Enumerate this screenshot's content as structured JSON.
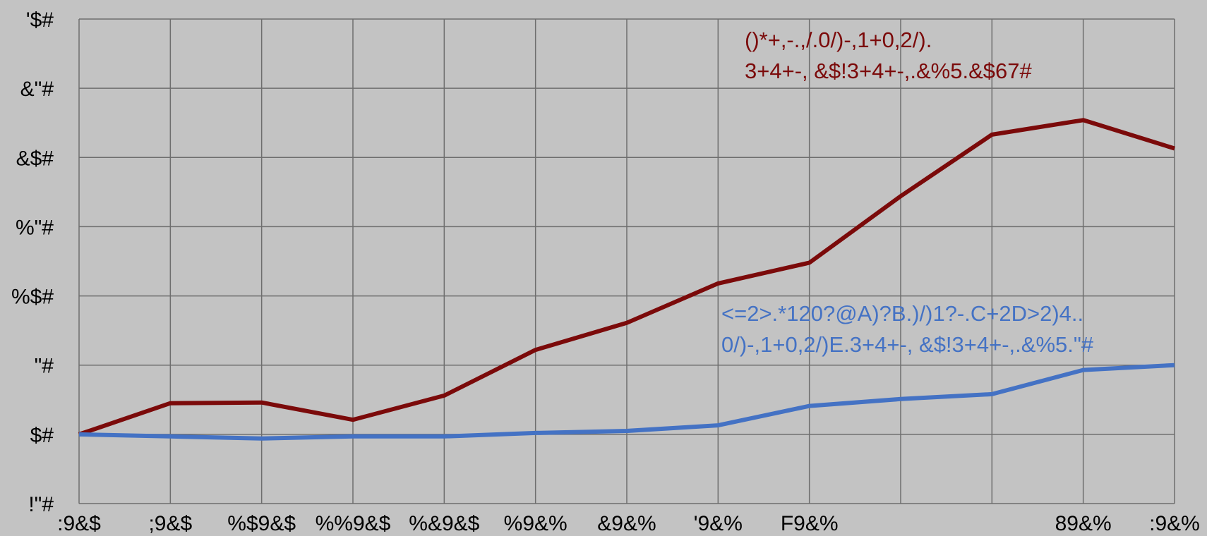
{
  "chart_data": {
    "type": "line",
    "x": [
      ":9&$",
      ";9&$",
      "%$9&$",
      "%%9&$",
      "%&9&$",
      "%9&%",
      "&9&%",
      "'9&%",
      "F9&%",
      "",
      "",
      "89&%",
      ":9&%"
    ],
    "y_ticks": [
      "'$#",
      "&\"#",
      "&$#",
      "%\"#",
      "%$#",
      "\"#",
      "$#",
      "!\"#"
    ],
    "ylim": [
      -10,
      60
    ],
    "grid": true,
    "series": [
      {
        "color": "#7b0a0a",
        "values": [
          0,
          4.5,
          4.6,
          2.1,
          5.6,
          12.2,
          16.1,
          21.8,
          24.8,
          34.4,
          43.3,
          45.4,
          41.3
        ]
      },
      {
        "color": "#4472c4",
        "values": [
          0,
          -0.3,
          -0.6,
          -0.3,
          -0.3,
          0.2,
          0.5,
          1.3,
          4.1,
          5.1,
          5.8,
          9.3,
          10.0
        ]
      }
    ],
    "annotations": [
      {
        "series": 0,
        "lines": [
          "()*+,-.,/.0/)-,1+0,2/).",
          "3+4+-, &$!3+4+-,.&%5.&$67#"
        ]
      },
      {
        "series": 1,
        "lines": [
          "<=2>.*120?@A)?B.)/)1?-.C+2D>2)4..",
          "0/)-,1+0,2/)E.3+4+-, &$!3+4+-,.&%5.\"#"
        ]
      }
    ]
  }
}
